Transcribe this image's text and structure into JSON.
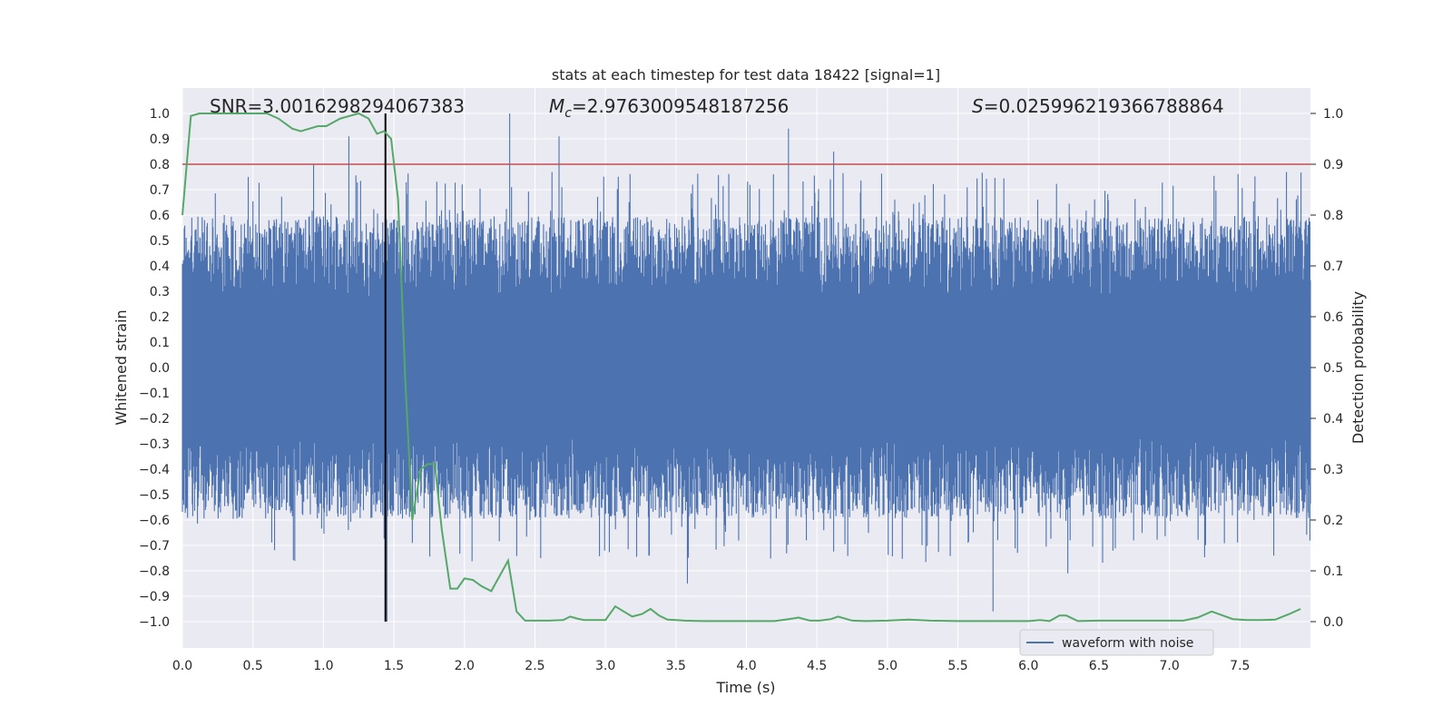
{
  "chart_data": {
    "type": "line",
    "title": "stats at each timestep for test data 18422 [signal=1]",
    "xlabel": "Time (s)",
    "ylabel_left": "Whitened strain",
    "ylabel_right": "Detection probability",
    "xlim": [
      0,
      8
    ],
    "ylim_left": [
      -1.1,
      1.1
    ],
    "ylim_right": [
      -0.05,
      1.05
    ],
    "x_ticks": [
      "0.0",
      "0.5",
      "1.0",
      "1.5",
      "2.0",
      "2.5",
      "3.0",
      "3.5",
      "4.0",
      "4.5",
      "5.0",
      "5.5",
      "6.0",
      "6.5",
      "7.0",
      "7.5"
    ],
    "y_ticks_left": [
      "1.0",
      "0.9",
      "0.8",
      "0.7",
      "0.6",
      "0.5",
      "0.4",
      "0.3",
      "0.2",
      "0.1",
      "0.0",
      "−0.1",
      "−0.2",
      "−0.3",
      "−0.4",
      "−0.5",
      "−0.6",
      "−0.7",
      "−0.8",
      "−0.9",
      "−1.0"
    ],
    "y_ticks_right": [
      "1.0",
      "0.9",
      "0.8",
      "0.7",
      "0.6",
      "0.5",
      "0.4",
      "0.3",
      "0.2",
      "0.1",
      "0.0"
    ],
    "annotations": {
      "snr": "SNR=3.0016298294067383",
      "mc_symbol": "M",
      "mc_sub": "c",
      "mc_value": "=2.9763009548187256",
      "s_symbol": "S",
      "s_value": "=0.025996219366788864"
    },
    "threshold": {
      "value": 0.9,
      "color": "#c44e52"
    },
    "marker_time": 1.44,
    "legend": [
      {
        "label": "waveform with noise",
        "color": "#4c72b0"
      }
    ],
    "series": [
      {
        "name": "waveform with noise",
        "axis": "left",
        "color": "#4c72b0",
        "typical_amplitude": 0.35,
        "max_positive": 1.0,
        "min_negative": -1.0,
        "peaks": [
          {
            "x": 0.93,
            "y": 0.8
          },
          {
            "x": 1.18,
            "y": 0.91
          },
          {
            "x": 1.45,
            "y": -1.0
          },
          {
            "x": 2.32,
            "y": 1.0
          },
          {
            "x": 2.67,
            "y": 0.91
          },
          {
            "x": 3.58,
            "y": -0.85
          },
          {
            "x": 4.3,
            "y": 0.94
          },
          {
            "x": 4.62,
            "y": 0.85
          },
          {
            "x": 5.75,
            "y": -0.96
          },
          {
            "x": 6.28,
            "y": -0.81
          }
        ]
      },
      {
        "name": "detection probability",
        "axis": "right",
        "color": "#55a868",
        "x": [
          0.0,
          0.06,
          0.12,
          0.2,
          0.4,
          0.6,
          0.68,
          0.78,
          0.84,
          0.9,
          0.96,
          1.02,
          1.12,
          1.25,
          1.32,
          1.38,
          1.43,
          1.48,
          1.53,
          1.58,
          1.63,
          1.69,
          1.74,
          1.79,
          1.84,
          1.9,
          1.95,
          2.0,
          2.06,
          2.12,
          2.19,
          2.25,
          2.31,
          2.37,
          2.43,
          2.5,
          2.6,
          2.7,
          2.75,
          2.8,
          2.85,
          2.92,
          3.0,
          3.07,
          3.13,
          3.19,
          3.26,
          3.32,
          3.38,
          3.44,
          3.5,
          3.56,
          3.7,
          4.0,
          4.2,
          4.3,
          4.37,
          4.45,
          4.52,
          4.6,
          4.65,
          4.75,
          4.85,
          5.0,
          5.15,
          5.3,
          5.5,
          5.8,
          6.0,
          6.08,
          6.15,
          6.22,
          6.27,
          6.35,
          6.5,
          6.65,
          6.8,
          6.9,
          7.1,
          7.2,
          7.3,
          7.38,
          7.45,
          7.55,
          7.65,
          7.75,
          7.85,
          7.93
        ]
      }
    ]
  }
}
